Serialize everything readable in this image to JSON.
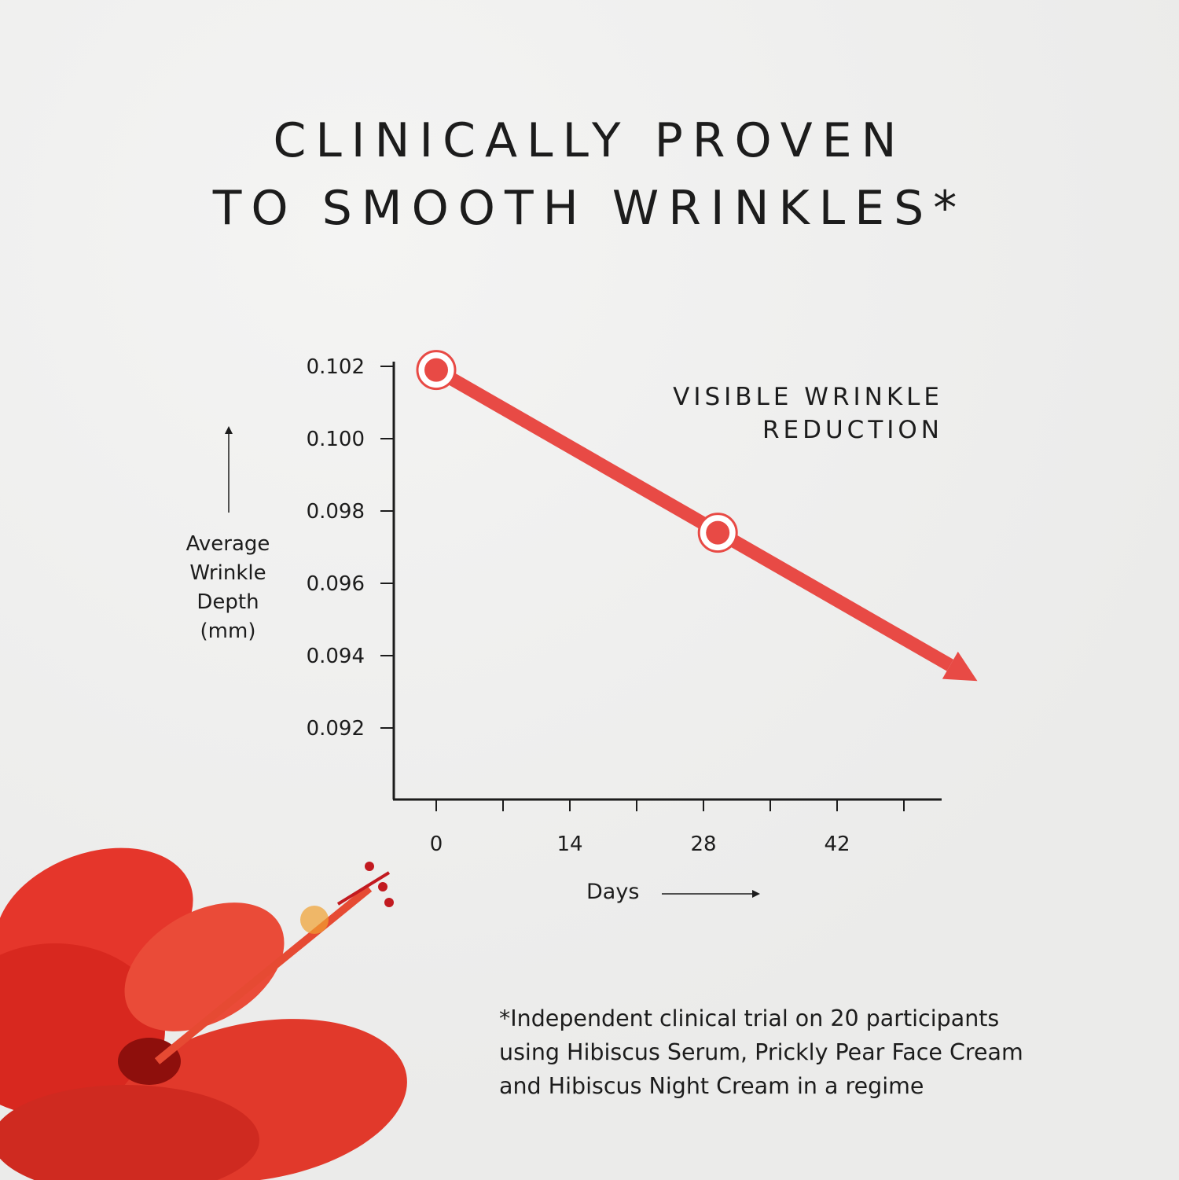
{
  "title": [
    "CLINICALLY PROVEN",
    "TO SMOOTH WRINKLES*"
  ],
  "colors": {
    "accent": "#e84a45",
    "text": "#1c1c1c",
    "background": "#efefee"
  },
  "chart_data": {
    "type": "line",
    "ylabel": [
      "Average",
      "Wrinkle",
      "Depth",
      "(mm)"
    ],
    "xlabel": "Days",
    "annotation": [
      "VISIBLE WRINKLE",
      "REDUCTION"
    ],
    "y_ticks": [
      "0.102",
      "0.100",
      "0.098",
      "0.096",
      "0.094",
      "0.092"
    ],
    "x_tick_labels": [
      "0",
      "14",
      "28",
      "42"
    ],
    "x_ticks": [
      0,
      7,
      14,
      21,
      28,
      35,
      42,
      49
    ],
    "ylim": [
      0.0902,
      0.102
    ],
    "xlim": [
      -6.5,
      50.5
    ],
    "points": [
      {
        "x": 0,
        "y": 0.1019
      },
      {
        "x": 29.5,
        "y": 0.0974
      }
    ],
    "trend_end": {
      "x": 56.7,
      "y": 0.0933
    },
    "grid": false
  },
  "footnote": [
    "*Independent clinical trial on 20 participants",
    "using Hibiscus Serum, Prickly Pear Face Cream",
    "and Hibiscus Night Cream in a regime"
  ],
  "decor": {
    "flower": "hibiscus-flower"
  }
}
